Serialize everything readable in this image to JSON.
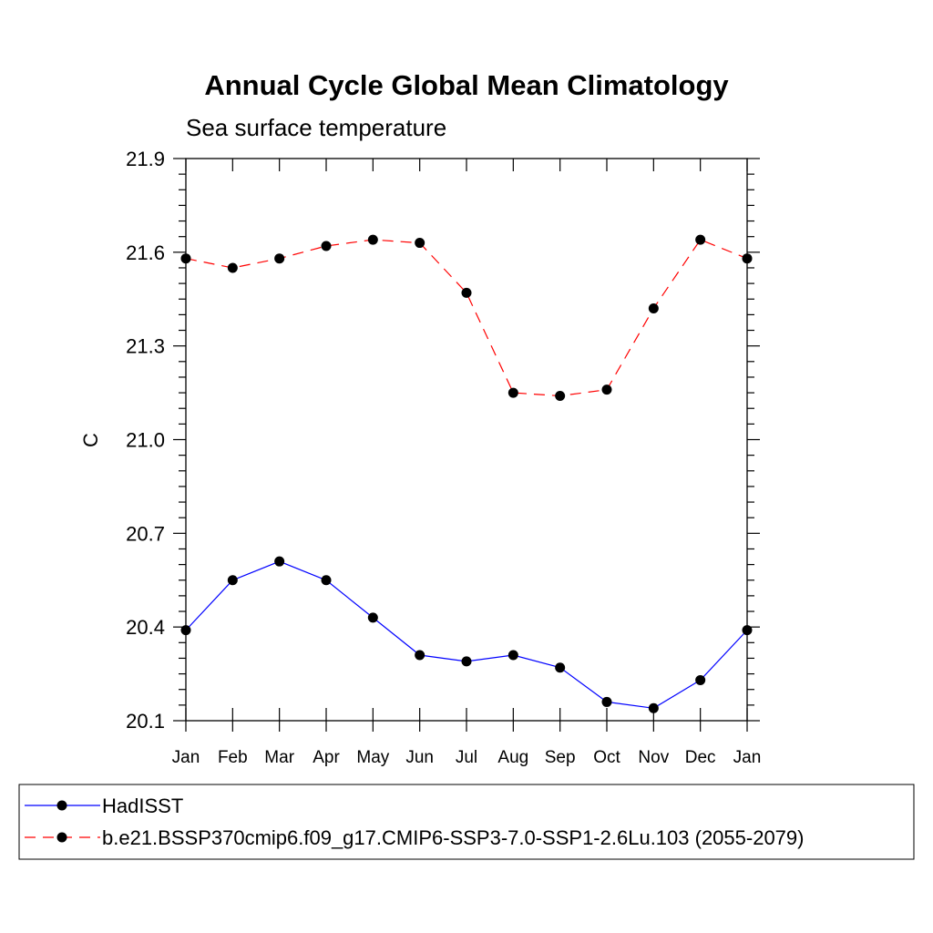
{
  "chart_data": {
    "type": "line",
    "title": "Annual Cycle Global Mean Climatology",
    "subtitle": "Sea surface temperature",
    "xlabel": "",
    "ylabel": "C",
    "ylim": [
      20.1,
      21.9
    ],
    "yticks": [
      "21.9",
      "21.6",
      "21.3",
      "21.0",
      "20.7",
      "20.4",
      "20.1"
    ],
    "categories": [
      "Jan",
      "Feb",
      "Mar",
      "Apr",
      "May",
      "Jun",
      "Jul",
      "Aug",
      "Sep",
      "Oct",
      "Nov",
      "Dec",
      "Jan"
    ],
    "grid": false,
    "legend_position": "bottom",
    "series": [
      {
        "name": "HadISST",
        "color": "#0000ff",
        "dash": "solid",
        "marker": "filled-circle",
        "values": [
          20.39,
          20.55,
          20.61,
          20.55,
          20.43,
          20.31,
          20.29,
          20.31,
          20.27,
          20.16,
          20.14,
          20.23,
          20.39
        ]
      },
      {
        "name": "b.e21.BSSP370cmip6.f09_g17.CMIP6-SSP3-7.0-SSP1-2.6Lu.103 (2055-2079)",
        "color": "#ff0000",
        "dash": "dashed",
        "marker": "filled-circle",
        "values": [
          21.58,
          21.55,
          21.58,
          21.62,
          21.64,
          21.63,
          21.47,
          21.15,
          21.14,
          21.16,
          21.42,
          21.64,
          21.58
        ]
      }
    ]
  }
}
